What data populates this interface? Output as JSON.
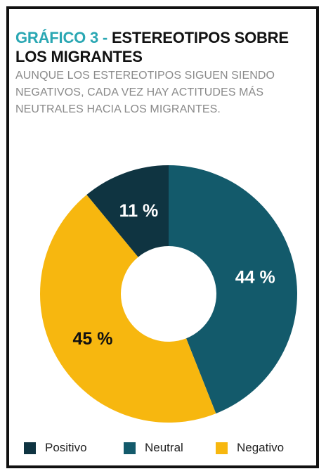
{
  "header": {
    "title_prefix": "GRÁFICO 3 - ",
    "title_main": "ESTEREOTIPOS SOBRE LOS MIGRANTES",
    "subtitle": "AUNQUE LOS ESTEREOTIPOS SIGUEN SIENDO NEGATIVOS, CADA VEZ HAY ACTITUDES MÁS NEUTRALES HACIA LOS MIGRANTES."
  },
  "colors": {
    "title_accent": "#2aa7b3",
    "positivo": "#0f3441",
    "neutral": "#135a6b",
    "negativo": "#f7b70f"
  },
  "chart_data": {
    "type": "pie",
    "donut": true,
    "slices": [
      {
        "name": "Neutral",
        "value": 44,
        "label": "44 %",
        "color": "#135a6b",
        "label_color": "#ffffff"
      },
      {
        "name": "Negativo",
        "value": 45,
        "label": "45 %",
        "color": "#f7b70f",
        "label_color": "#111111"
      },
      {
        "name": "Positivo",
        "value": 11,
        "label": "11 %",
        "color": "#0f3441",
        "label_color": "#ffffff"
      }
    ],
    "legend": [
      {
        "name": "Positivo",
        "color": "#0f3441"
      },
      {
        "name": "Neutral",
        "color": "#135a6b"
      },
      {
        "name": "Negativo",
        "color": "#f7b70f"
      }
    ],
    "legend_position": "bottom"
  }
}
